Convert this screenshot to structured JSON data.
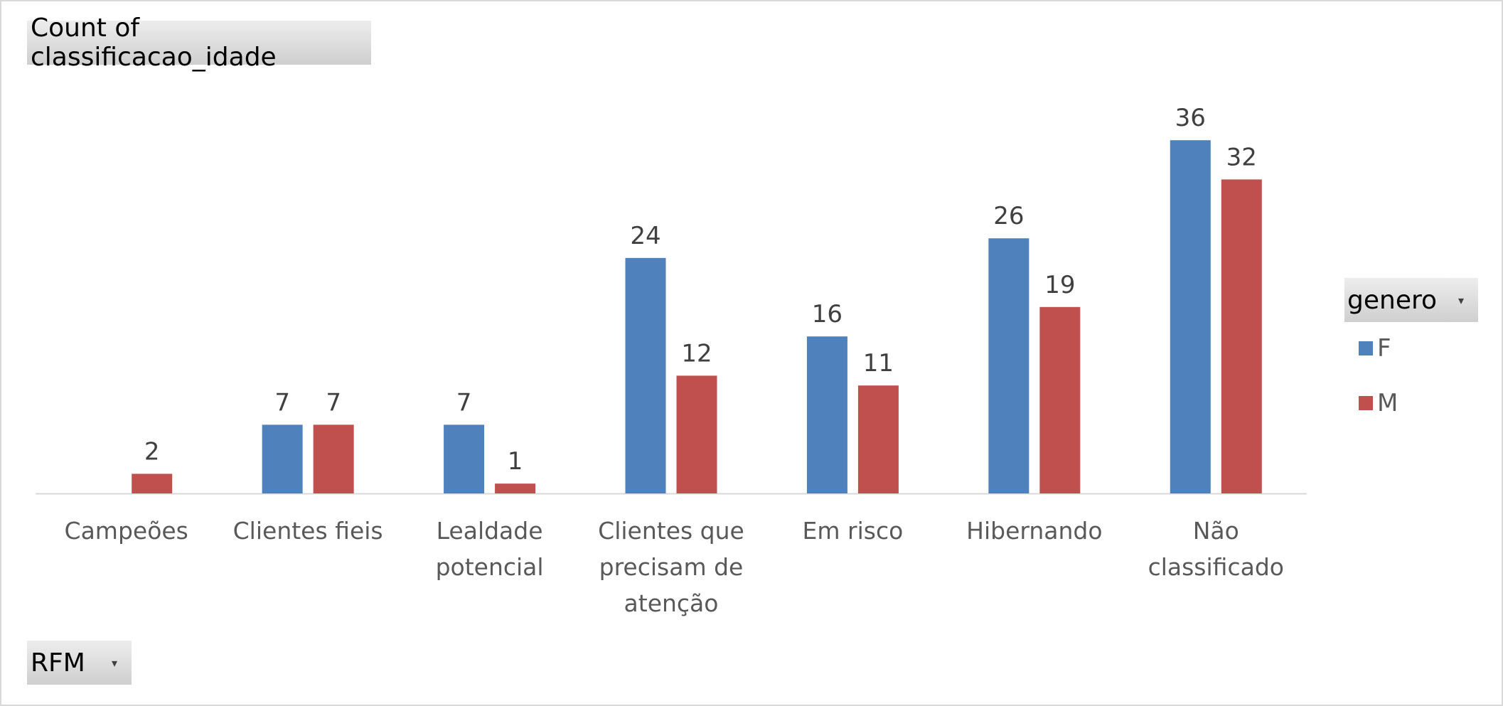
{
  "chart": {
    "measure_button": "Count of classificacao_idade",
    "axis_field_button": "RFM",
    "legend_field_button": "genero"
  },
  "chart_data": {
    "type": "bar",
    "categories": [
      "Campeões",
      "Clientes fieis",
      "Lealdade potencial",
      "Clientes que precisam de atenção",
      "Em risco",
      "Hibernando",
      "Não classificado"
    ],
    "category_label_lines": [
      [
        "Campeões"
      ],
      [
        "Clientes fieis"
      ],
      [
        "Lealdade",
        "potencial"
      ],
      [
        "Clientes que",
        "precisam de",
        "atenção"
      ],
      [
        "Em risco"
      ],
      [
        "Hibernando"
      ],
      [
        "Não",
        "classificado"
      ]
    ],
    "series": [
      {
        "name": "F",
        "color": "#4f81bd",
        "values": [
          null,
          7,
          7,
          24,
          16,
          26,
          36
        ]
      },
      {
        "name": "M",
        "color": "#c0504d",
        "values": [
          2,
          7,
          1,
          12,
          11,
          19,
          32
        ]
      }
    ],
    "ylim": [
      0,
      40
    ],
    "data_labels": true,
    "grid": false,
    "legend_position": "right"
  }
}
